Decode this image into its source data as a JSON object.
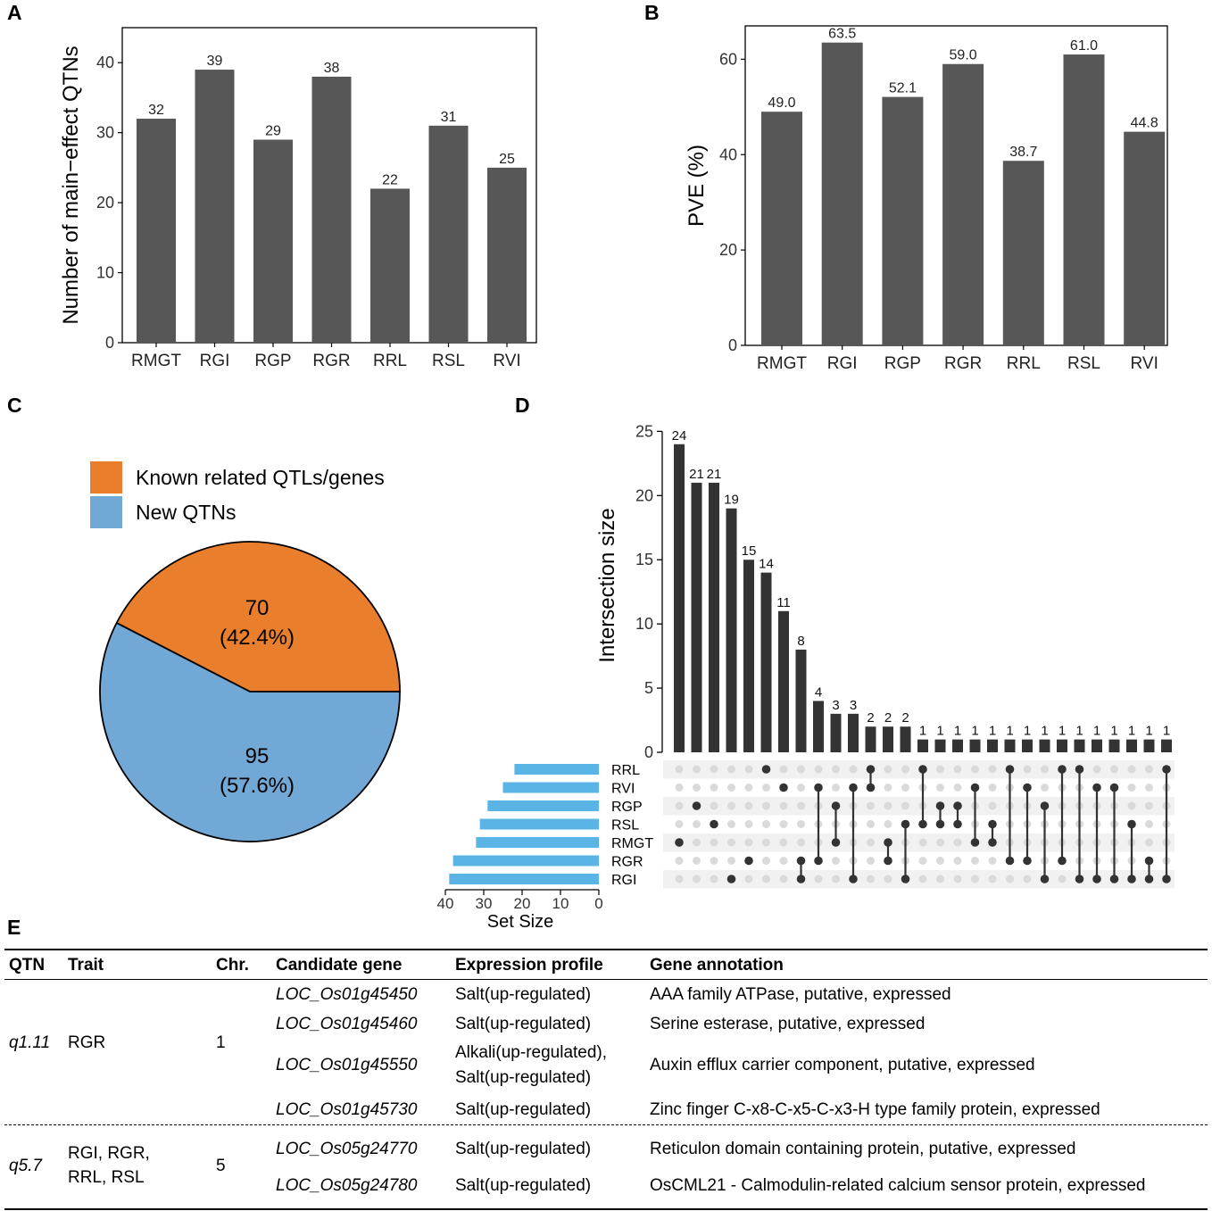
{
  "chart_data": [
    {
      "panel": "A",
      "type": "bar",
      "categories": [
        "RMGT",
        "RGI",
        "RGP",
        "RGR",
        "RRL",
        "RSL",
        "RVI"
      ],
      "values": [
        32,
        39,
        29,
        38,
        22,
        31,
        25
      ],
      "value_labels": [
        "32",
        "39",
        "29",
        "38",
        "22",
        "31",
        "25"
      ],
      "ylabel": "Number of main−effect QTNs",
      "xlabel": "",
      "ylim": [
        0,
        45
      ],
      "yticks": [
        0,
        10,
        20,
        30,
        40
      ],
      "bar_color": "#575757"
    },
    {
      "panel": "B",
      "type": "bar",
      "categories": [
        "RMGT",
        "RGI",
        "RGP",
        "RGR",
        "RRL",
        "RSL",
        "RVI"
      ],
      "values": [
        49.0,
        63.5,
        52.1,
        59.0,
        38.7,
        61.0,
        44.8
      ],
      "value_labels": [
        "49.0",
        "63.5",
        "52.1",
        "59.0",
        "38.7",
        "61.0",
        "44.8"
      ],
      "ylabel": "PVE (%)",
      "xlabel": "",
      "ylim": [
        0,
        67
      ],
      "yticks": [
        0,
        20,
        40,
        60
      ],
      "bar_color": "#575757"
    },
    {
      "panel": "C",
      "type": "pie",
      "slices": [
        {
          "name": "Known related QTLs/genes",
          "value": 70,
          "label_count": "70",
          "label_pct": "(42.4%)",
          "color": "#E97E2C"
        },
        {
          "name": "New QTNs",
          "value": 95,
          "label_count": "95",
          "label_pct": "(57.6%)",
          "color": "#72A8D6"
        }
      ]
    },
    {
      "panel": "D",
      "type": "bar",
      "subtype": "upset",
      "ylabel": "Intersection size",
      "ylim": [
        0,
        26
      ],
      "yticks": [
        0,
        5,
        10,
        15,
        20,
        25
      ],
      "intersection_sizes": [
        24,
        21,
        21,
        19,
        15,
        14,
        11,
        8,
        4,
        3,
        3,
        2,
        2,
        2,
        1,
        1,
        1,
        1,
        1,
        1,
        1,
        1,
        1,
        1,
        1,
        1,
        1,
        1,
        1
      ],
      "intersection_labels": [
        "24",
        "21",
        "21",
        "19",
        "15",
        "14",
        "11",
        "8",
        "4",
        "3",
        "3",
        "2",
        "2",
        "2",
        "1",
        "1",
        "1",
        "1",
        "1",
        "1",
        "1",
        "1",
        "1",
        "1",
        "1",
        "1",
        "1",
        "1",
        "1"
      ],
      "sets": [
        "RRL",
        "RVI",
        "RGP",
        "RSL",
        "RMGT",
        "RGR",
        "RGI"
      ],
      "set_sizes": [
        22,
        25,
        29,
        31,
        32,
        38,
        39
      ],
      "set_size_xlabel": "Set Size",
      "set_size_ticks": [
        40,
        30,
        20,
        10,
        0
      ],
      "set_bar_color": "#5AB4E6",
      "memberships": [
        [
          "RMGT"
        ],
        [
          "RGP"
        ],
        [
          "RSL"
        ],
        [
          "RGI"
        ],
        [
          "RGR"
        ],
        [
          "RRL"
        ],
        [
          "RVI"
        ],
        [
          "RGR",
          "RGI"
        ],
        [
          "RVI",
          "RGR"
        ],
        [
          "RGP",
          "RMGT"
        ],
        [
          "RVI",
          "RGI"
        ],
        [
          "RRL",
          "RVI"
        ],
        [
          "RMGT",
          "RGR"
        ],
        [
          "RSL",
          "RGI"
        ],
        [
          "RRL",
          "RSL"
        ],
        [
          "RGP",
          "RSL"
        ],
        [
          "RGP",
          "RSL"
        ],
        [
          "RVI",
          "RMGT"
        ],
        [
          "RSL",
          "RMGT"
        ],
        [
          "RRL",
          "RGR"
        ],
        [
          "RVI",
          "RGR"
        ],
        [
          "RGP",
          "RGI"
        ],
        [
          "RRL",
          "RGR"
        ],
        [
          "RRL",
          "RGI"
        ],
        [
          "RVI",
          "RGI"
        ],
        [
          "RVI",
          "RGI"
        ],
        [
          "RSL",
          "RGI"
        ],
        [
          "RGR",
          "RGI"
        ],
        [
          "RRL",
          "RGI"
        ]
      ]
    }
  ],
  "panel_letters": {
    "a": "A",
    "b": "B",
    "c": "C",
    "d": "D",
    "e": "E"
  },
  "table": {
    "headers": [
      "QTN",
      "Trait",
      "Chr.",
      "Candidate gene",
      "Expression profile",
      "Gene annotation"
    ],
    "groups": [
      {
        "qtn": "q1.11",
        "trait_lines": [
          "RGR"
        ],
        "chr": "1",
        "rows": [
          {
            "gene": "LOC_Os01g45450",
            "expr_lines": [
              "Salt(up-regulated)"
            ],
            "annot": "AAA family ATPase, putative, expressed"
          },
          {
            "gene": "LOC_Os01g45460",
            "expr_lines": [
              "Salt(up-regulated)"
            ],
            "annot": "Serine esterase, putative, expressed"
          },
          {
            "gene": "LOC_Os01g45550",
            "expr_lines": [
              "Alkali(up-regulated),",
              "Salt(up-regulated)"
            ],
            "annot": "Auxin efflux carrier component, putative, expressed"
          },
          {
            "gene": "LOC_Os01g45730",
            "expr_lines": [
              "Salt(up-regulated)"
            ],
            "annot": "Zinc finger C-x8-C-x5-C-x3-H type family protein, expressed"
          }
        ]
      },
      {
        "qtn": "q5.7",
        "trait_lines": [
          "RGI, RGR,",
          "RRL, RSL"
        ],
        "chr": "5",
        "rows": [
          {
            "gene": "LOC_Os05g24770",
            "expr_lines": [
              "Salt(up-regulated)"
            ],
            "annot": "Reticulon domain containing protein, putative, expressed"
          },
          {
            "gene": "LOC_Os05g24780",
            "expr_lines": [
              "Salt(up-regulated)"
            ],
            "annot": "OsCML21 - Calmodulin-related calcium sensor protein, expressed"
          }
        ]
      }
    ]
  }
}
